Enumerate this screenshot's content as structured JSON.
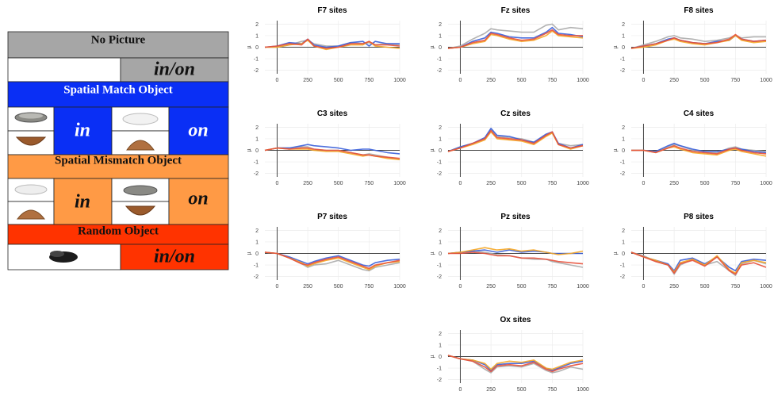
{
  "legend_table": {
    "no_picture": {
      "header": "No Picture",
      "label": "in/on"
    },
    "spatial_match": {
      "header": "Spatial Match Object",
      "left_label": "in",
      "right_label": "on"
    },
    "spatial_mismatch": {
      "header": "Spatial Mismatch Object",
      "left_label": "in",
      "right_label": "on"
    },
    "random": {
      "header": "Random Object",
      "label": "in/on"
    }
  },
  "chart_data": [
    {
      "type": "line",
      "title": "F7 sites",
      "y_label": "µ",
      "x": [
        -100,
        0,
        100,
        200,
        250,
        300,
        400,
        500,
        600,
        700,
        750,
        800,
        900,
        1000
      ],
      "xlim": [
        -100,
        1000
      ],
      "xticks": [
        0,
        250,
        500,
        750,
        1000
      ],
      "ylim": [
        -2.3,
        2.3
      ],
      "yticks": [
        -2,
        -1,
        0,
        1,
        2
      ],
      "grid": true,
      "series": [
        {
          "color": "#aaaaaa",
          "values": [
            0,
            0,
            0.2,
            0.5,
            0.6,
            0.3,
            0.1,
            0.1,
            0.4,
            0.3,
            0.4,
            0.2,
            0.3,
            0.2
          ]
        },
        {
          "color": "#3a5fd9",
          "values": [
            0,
            0.1,
            0.4,
            0.3,
            0.7,
            0.2,
            0,
            0.1,
            0.4,
            0.5,
            0.1,
            0.5,
            0.3,
            0.3
          ]
        },
        {
          "color": "#f5a623",
          "values": [
            0,
            0,
            0.2,
            0.3,
            0.6,
            0.1,
            -0.2,
            0,
            0.2,
            0.2,
            0.5,
            0.1,
            0,
            -0.1
          ]
        },
        {
          "color": "#e8503a",
          "values": [
            0,
            0.1,
            0.3,
            0.2,
            0.7,
            0.1,
            -0.1,
            0,
            0.3,
            0.3,
            0.5,
            0.2,
            0.2,
            0.1
          ]
        }
      ]
    },
    {
      "type": "line",
      "title": "Fz sites",
      "y_label": "µ",
      "x": [
        -100,
        0,
        100,
        200,
        250,
        300,
        400,
        500,
        600,
        700,
        750,
        800,
        900,
        1000
      ],
      "xlim": [
        -100,
        1000
      ],
      "xticks": [
        0,
        250,
        500,
        750,
        1000
      ],
      "ylim": [
        -2.3,
        2.3
      ],
      "yticks": [
        -2,
        -1,
        0,
        1,
        2
      ],
      "grid": true,
      "series": [
        {
          "color": "#aaaaaa",
          "values": [
            -0.1,
            0.1,
            0.7,
            1.2,
            1.6,
            1.5,
            1.4,
            1.3,
            1.3,
            1.9,
            2.0,
            1.5,
            1.7,
            1.6
          ]
        },
        {
          "color": "#3a5fd9",
          "values": [
            -0.1,
            0,
            0.5,
            0.8,
            1.3,
            1.2,
            0.9,
            0.8,
            0.8,
            1.3,
            1.7,
            1.2,
            1.1,
            0.9
          ]
        },
        {
          "color": "#f5a623",
          "values": [
            -0.1,
            0,
            0.3,
            0.5,
            1.1,
            1.0,
            0.7,
            0.5,
            0.6,
            1.0,
            1.4,
            1.0,
            0.9,
            0.8
          ]
        },
        {
          "color": "#e8503a",
          "values": [
            -0.1,
            0,
            0.4,
            0.6,
            1.2,
            1.1,
            0.8,
            0.6,
            0.7,
            1.2,
            1.5,
            1.1,
            1.0,
            1.0
          ]
        }
      ]
    },
    {
      "type": "line",
      "title": "F8 sites",
      "y_label": "µ",
      "x": [
        -100,
        0,
        100,
        200,
        250,
        300,
        400,
        500,
        600,
        700,
        750,
        800,
        900,
        1000
      ],
      "xlim": [
        -100,
        1000
      ],
      "xticks": [
        0,
        250,
        500,
        750,
        1000
      ],
      "ylim": [
        -2.3,
        2.3
      ],
      "yticks": [
        -2,
        -1,
        0,
        1,
        2
      ],
      "grid": true,
      "series": [
        {
          "color": "#aaaaaa",
          "values": [
            -0.1,
            0.2,
            0.5,
            0.9,
            1.0,
            0.8,
            0.7,
            0.5,
            0.6,
            0.8,
            1.0,
            0.8,
            0.9,
            0.9
          ]
        },
        {
          "color": "#3a5fd9",
          "values": [
            -0.1,
            0.1,
            0.3,
            0.7,
            0.8,
            0.6,
            0.4,
            0.3,
            0.5,
            0.6,
            1.0,
            0.7,
            0.5,
            0.6
          ]
        },
        {
          "color": "#f5a623",
          "values": [
            -0.1,
            0,
            0.2,
            0.6,
            0.7,
            0.5,
            0.3,
            0.2,
            0.4,
            0.6,
            1.0,
            0.6,
            0.4,
            0.5
          ]
        },
        {
          "color": "#e8503a",
          "values": [
            -0.1,
            0.1,
            0.3,
            0.6,
            0.8,
            0.6,
            0.4,
            0.3,
            0.4,
            0.7,
            1.1,
            0.7,
            0.5,
            0.6
          ]
        }
      ]
    },
    {
      "type": "line",
      "title": "C3 sites",
      "y_label": "µ",
      "x": [
        -100,
        0,
        100,
        200,
        250,
        300,
        400,
        500,
        600,
        700,
        750,
        800,
        900,
        1000
      ],
      "xlim": [
        -100,
        1000
      ],
      "xticks": [
        0,
        250,
        500,
        750,
        1000
      ],
      "ylim": [
        -2.3,
        2.3
      ],
      "yticks": [
        -2,
        -1,
        0,
        1,
        2
      ],
      "grid": true,
      "series": [
        {
          "color": "#aaaaaa",
          "values": [
            0,
            0.2,
            0.2,
            0.3,
            0.3,
            0.1,
            0,
            0,
            -0.2,
            -0.4,
            -0.3,
            -0.4,
            -0.6,
            -0.8
          ]
        },
        {
          "color": "#3a5fd9",
          "values": [
            0,
            0.2,
            0.2,
            0.4,
            0.5,
            0.4,
            0.3,
            0.2,
            0,
            0.1,
            0.1,
            0,
            -0.2,
            -0.3
          ]
        },
        {
          "color": "#f5a623",
          "values": [
            0,
            0.2,
            0.1,
            0.1,
            0.1,
            0,
            -0.1,
            -0.1,
            -0.3,
            -0.5,
            -0.4,
            -0.5,
            -0.7,
            -0.8
          ]
        },
        {
          "color": "#e8503a",
          "values": [
            0,
            0.2,
            0.1,
            0.2,
            0.2,
            0.1,
            0,
            0,
            -0.2,
            -0.4,
            -0.4,
            -0.5,
            -0.6,
            -0.7
          ]
        }
      ]
    },
    {
      "type": "line",
      "title": "Cz sites",
      "y_label": "µ",
      "x": [
        -100,
        0,
        100,
        200,
        250,
        300,
        400,
        500,
        600,
        700,
        750,
        800,
        900,
        1000
      ],
      "xlim": [
        -100,
        1000
      ],
      "xticks": [
        0,
        250,
        500,
        750,
        1000
      ],
      "ylim": [
        -2.3,
        2.3
      ],
      "yticks": [
        -2,
        -1,
        0,
        1,
        2
      ],
      "grid": true,
      "series": [
        {
          "color": "#aaaaaa",
          "values": [
            -0.1,
            0.3,
            0.6,
            1.0,
            1.8,
            1.2,
            1.1,
            1.0,
            0.7,
            1.3,
            1.5,
            0.6,
            0.4,
            0.5
          ]
        },
        {
          "color": "#3a5fd9",
          "values": [
            -0.1,
            0.3,
            0.6,
            1.1,
            1.9,
            1.3,
            1.2,
            0.9,
            0.7,
            1.4,
            1.6,
            0.6,
            0.2,
            0.5
          ]
        },
        {
          "color": "#f5a623",
          "values": [
            -0.1,
            0.2,
            0.5,
            0.9,
            1.6,
            1.0,
            0.9,
            0.8,
            0.5,
            1.2,
            1.5,
            0.5,
            0.1,
            0.4
          ]
        },
        {
          "color": "#e8503a",
          "values": [
            -0.1,
            0.2,
            0.6,
            1.0,
            1.7,
            1.1,
            1.0,
            0.9,
            0.6,
            1.3,
            1.6,
            0.5,
            0.2,
            0.4
          ]
        }
      ]
    },
    {
      "type": "line",
      "title": "C4 sites",
      "y_label": "µ",
      "x": [
        -100,
        0,
        100,
        200,
        250,
        300,
        400,
        500,
        600,
        700,
        750,
        800,
        900,
        1000
      ],
      "xlim": [
        -100,
        1000
      ],
      "xticks": [
        0,
        250,
        500,
        750,
        1000
      ],
      "ylim": [
        -2.3,
        2.3
      ],
      "yticks": [
        -2,
        -1,
        0,
        1,
        2
      ],
      "grid": true,
      "series": [
        {
          "color": "#aaaaaa",
          "values": [
            0,
            0,
            -0.1,
            0.3,
            0.5,
            0.4,
            0,
            -0.1,
            -0.2,
            0.2,
            0.3,
            0.1,
            0,
            -0.1
          ]
        },
        {
          "color": "#3a5fd9",
          "values": [
            0,
            0,
            -0.1,
            0.4,
            0.6,
            0.4,
            0.1,
            -0.1,
            -0.1,
            0.1,
            0.2,
            0.1,
            -0.1,
            -0.2
          ]
        },
        {
          "color": "#f5a623",
          "values": [
            0,
            0,
            -0.2,
            0.2,
            0.3,
            0.1,
            -0.2,
            -0.3,
            -0.4,
            0,
            0.1,
            -0.1,
            -0.3,
            -0.5
          ]
        },
        {
          "color": "#e8503a",
          "values": [
            0,
            0,
            -0.2,
            0.2,
            0.4,
            0.2,
            -0.1,
            -0.2,
            -0.3,
            0.1,
            0.2,
            0,
            -0.2,
            -0.3
          ]
        }
      ]
    },
    {
      "type": "line",
      "title": "P7 sites",
      "y_label": "µ",
      "x": [
        -100,
        0,
        100,
        200,
        250,
        300,
        400,
        500,
        600,
        700,
        750,
        800,
        900,
        1000
      ],
      "xlim": [
        -100,
        1000
      ],
      "xticks": [
        0,
        250,
        500,
        750,
        1000
      ],
      "ylim": [
        -2.3,
        2.3
      ],
      "yticks": [
        -2,
        -1,
        0,
        1,
        2
      ],
      "grid": true,
      "series": [
        {
          "color": "#aaaaaa",
          "values": [
            0.1,
            0,
            -0.4,
            -0.9,
            -1.2,
            -1.0,
            -0.9,
            -0.6,
            -1.0,
            -1.4,
            -1.5,
            -1.2,
            -1.0,
            -0.8
          ]
        },
        {
          "color": "#3a5fd9",
          "values": [
            0.1,
            0,
            -0.3,
            -0.7,
            -0.9,
            -0.7,
            -0.4,
            -0.2,
            -0.6,
            -1.0,
            -1.1,
            -0.8,
            -0.6,
            -0.5
          ]
        },
        {
          "color": "#f5a623",
          "values": [
            0.1,
            0,
            -0.4,
            -0.8,
            -1.1,
            -0.9,
            -0.6,
            -0.4,
            -0.8,
            -1.2,
            -1.4,
            -1.1,
            -0.8,
            -0.7
          ]
        },
        {
          "color": "#e8503a",
          "values": [
            0.1,
            0,
            -0.4,
            -0.9,
            -1.0,
            -0.8,
            -0.5,
            -0.3,
            -0.7,
            -1.1,
            -1.3,
            -1.0,
            -0.8,
            -0.6
          ]
        }
      ]
    },
    {
      "type": "line",
      "title": "Pz sites",
      "y_label": "µ",
      "x": [
        -100,
        0,
        100,
        200,
        250,
        300,
        400,
        500,
        600,
        700,
        750,
        800,
        900,
        1000
      ],
      "xlim": [
        -100,
        1000
      ],
      "xticks": [
        0,
        250,
        500,
        750,
        1000
      ],
      "ylim": [
        -2.3,
        2.3
      ],
      "yticks": [
        -2,
        -1,
        0,
        1,
        2
      ],
      "grid": true,
      "series": [
        {
          "color": "#aaaaaa",
          "values": [
            0,
            0.1,
            0.2,
            0.1,
            0,
            -0.1,
            -0.2,
            -0.4,
            -0.5,
            -0.5,
            -0.7,
            -0.8,
            -1.0,
            -1.2
          ]
        },
        {
          "color": "#3a5fd9",
          "values": [
            0,
            0.1,
            0.2,
            0.3,
            0.2,
            0.1,
            0.3,
            0.1,
            0.2,
            0.1,
            0,
            0,
            0,
            0
          ]
        },
        {
          "color": "#f5a623",
          "values": [
            0,
            0.1,
            0.3,
            0.5,
            0.4,
            0.3,
            0.4,
            0.2,
            0.3,
            0.1,
            0,
            -0.1,
            0,
            0.2
          ]
        },
        {
          "color": "#e8503a",
          "values": [
            0,
            0,
            0.1,
            0,
            -0.1,
            -0.2,
            -0.2,
            -0.4,
            -0.4,
            -0.5,
            -0.6,
            -0.7,
            -0.8,
            -0.9
          ]
        }
      ]
    },
    {
      "type": "line",
      "title": "P8 sites",
      "y_label": "µ",
      "x": [
        -100,
        0,
        100,
        200,
        250,
        300,
        400,
        500,
        600,
        700,
        750,
        800,
        900,
        1000
      ],
      "xlim": [
        -100,
        1000
      ],
      "xticks": [
        0,
        250,
        500,
        750,
        1000
      ],
      "ylim": [
        -2.3,
        2.3
      ],
      "yticks": [
        -2,
        -1,
        0,
        1,
        2
      ],
      "grid": true,
      "series": [
        {
          "color": "#aaaaaa",
          "values": [
            0.1,
            -0.2,
            -0.7,
            -1.0,
            -1.8,
            -1.0,
            -0.5,
            -1.0,
            -0.7,
            -1.5,
            -1.9,
            -0.9,
            -0.6,
            -0.9
          ]
        },
        {
          "color": "#3a5fd9",
          "values": [
            0.1,
            -0.3,
            -0.6,
            -0.9,
            -1.5,
            -0.6,
            -0.4,
            -0.9,
            -0.3,
            -1.2,
            -1.5,
            -0.7,
            -0.5,
            -0.6
          ]
        },
        {
          "color": "#f5a623",
          "values": [
            0.1,
            -0.3,
            -0.6,
            -1.0,
            -1.6,
            -0.8,
            -0.5,
            -1.0,
            -0.2,
            -1.4,
            -1.7,
            -0.8,
            -0.6,
            -0.8
          ]
        },
        {
          "color": "#e8503a",
          "values": [
            0.1,
            -0.3,
            -0.7,
            -1.0,
            -1.7,
            -0.9,
            -0.6,
            -1.1,
            -0.3,
            -1.5,
            -1.8,
            -1.0,
            -0.8,
            -1.2
          ]
        }
      ]
    },
    {
      "type": "line",
      "title": "Ox sites",
      "y_label": "µ",
      "x": [
        -100,
        0,
        100,
        200,
        250,
        300,
        400,
        500,
        600,
        700,
        750,
        800,
        900,
        1000
      ],
      "xlim": [
        -100,
        1000
      ],
      "xticks": [
        0,
        250,
        500,
        750,
        1000
      ],
      "ylim": [
        -2.3,
        2.3
      ],
      "yticks": [
        -2,
        -1,
        0,
        1,
        2
      ],
      "grid": true,
      "series": [
        {
          "color": "#aaaaaa",
          "values": [
            0.1,
            -0.2,
            -0.4,
            -1.1,
            -1.4,
            -0.9,
            -0.8,
            -0.9,
            -0.6,
            -1.2,
            -1.4,
            -1.3,
            -0.9,
            -1.1
          ]
        },
        {
          "color": "#3a5fd9",
          "values": [
            0.1,
            -0.2,
            -0.3,
            -0.7,
            -1.2,
            -0.7,
            -0.6,
            -0.6,
            -0.4,
            -1.0,
            -1.2,
            -1.0,
            -0.6,
            -0.4
          ]
        },
        {
          "color": "#f5a623",
          "values": [
            0.1,
            -0.2,
            -0.3,
            -0.6,
            -1.1,
            -0.6,
            -0.4,
            -0.5,
            -0.3,
            -1.0,
            -1.1,
            -0.9,
            -0.5,
            -0.3
          ]
        },
        {
          "color": "#e8503a",
          "values": [
            0.1,
            -0.2,
            -0.4,
            -0.9,
            -1.3,
            -0.8,
            -0.7,
            -0.8,
            -0.5,
            -1.1,
            -1.3,
            -1.1,
            -0.8,
            -0.6
          ]
        }
      ]
    }
  ]
}
